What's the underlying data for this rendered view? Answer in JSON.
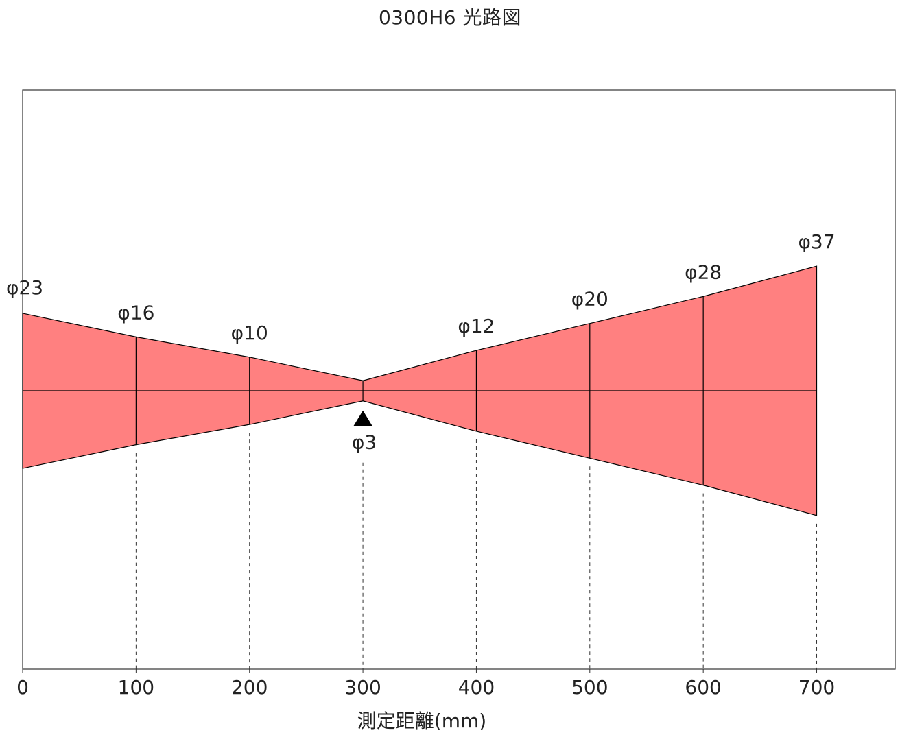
{
  "chart_data": {
    "type": "area",
    "title": "0300H6 光路図",
    "xlabel": "測定距離(mm)",
    "ylabel": "",
    "x_ticks": [
      "0",
      "100",
      "200",
      "300",
      "400",
      "500",
      "600",
      "700"
    ],
    "xlim": [
      0,
      775
    ],
    "ylim": [
      -29,
      26
    ],
    "focus_distance": 300,
    "fill_color": "#ff8080",
    "outline_color": "#000000",
    "beam": {
      "x": [
        0,
        100,
        200,
        300,
        400,
        500,
        600,
        700
      ],
      "diameter": [
        23,
        16,
        10,
        3,
        12,
        20,
        28,
        37
      ],
      "labels": [
        "φ23",
        "φ16",
        "φ10",
        "φ3",
        "φ12",
        "φ20",
        "φ28",
        "φ37"
      ]
    }
  }
}
